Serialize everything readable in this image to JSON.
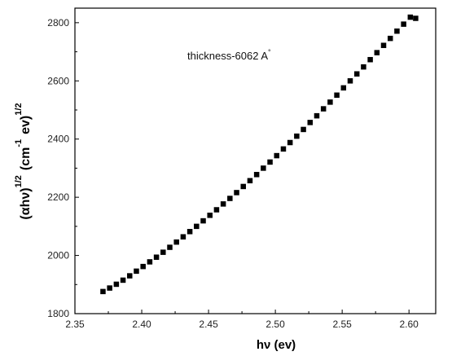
{
  "chart_data": {
    "type": "scatter",
    "title": "",
    "annotation": {
      "text": "thickness-6062 A",
      "superscript": "°"
    },
    "xlabel": "hν (ev)",
    "ylabel": {
      "base": "(αhν)",
      "exp1": "1/2",
      "unit_open": "(cm",
      "exp2": "-1",
      "unit_mid": "ev)",
      "exp3": "1/2"
    },
    "xlim": [
      2.35,
      2.62
    ],
    "ylim": [
      1800,
      2850
    ],
    "xticks": [
      2.35,
      2.4,
      2.45,
      2.5,
      2.55,
      2.6
    ],
    "xtick_labels": [
      "2.35",
      "2.40",
      "2.45",
      "2.50",
      "2.55",
      "2.60"
    ],
    "yticks": [
      1800,
      2000,
      2200,
      2400,
      2600,
      2800
    ],
    "ytick_labels": [
      "1800",
      "2000",
      "2200",
      "2400",
      "2600",
      "2800"
    ],
    "grid": false,
    "legend": "none",
    "marker": "square",
    "marker_color": "#000000",
    "series": [
      {
        "x": [
          2.371,
          2.376,
          2.381,
          2.386,
          2.391,
          2.396,
          2.401,
          2.406,
          2.411,
          2.416,
          2.421,
          2.426,
          2.431,
          2.436,
          2.441,
          2.446,
          2.451,
          2.456,
          2.461,
          2.466,
          2.471,
          2.476,
          2.481,
          2.486,
          2.491,
          2.496,
          2.501,
          2.506,
          2.511,
          2.516,
          2.521,
          2.526,
          2.531,
          2.536,
          2.541,
          2.546,
          2.551,
          2.556,
          2.561,
          2.566,
          2.571,
          2.576,
          2.581,
          2.586,
          2.591,
          2.596,
          2.601,
          2.605
        ],
        "y": [
          1876,
          1888,
          1901,
          1915,
          1930,
          1946,
          1962,
          1978,
          1994,
          2011,
          2028,
          2046,
          2064,
          2082,
          2100,
          2119,
          2138,
          2157,
          2177,
          2196,
          2216,
          2237,
          2257,
          2278,
          2300,
          2321,
          2343,
          2366,
          2388,
          2410,
          2433,
          2457,
          2480,
          2504,
          2527,
          2551,
          2576,
          2600,
          2624,
          2648,
          2673,
          2697,
          2722,
          2746,
          2771,
          2795,
          2819,
          2815
        ]
      }
    ]
  }
}
